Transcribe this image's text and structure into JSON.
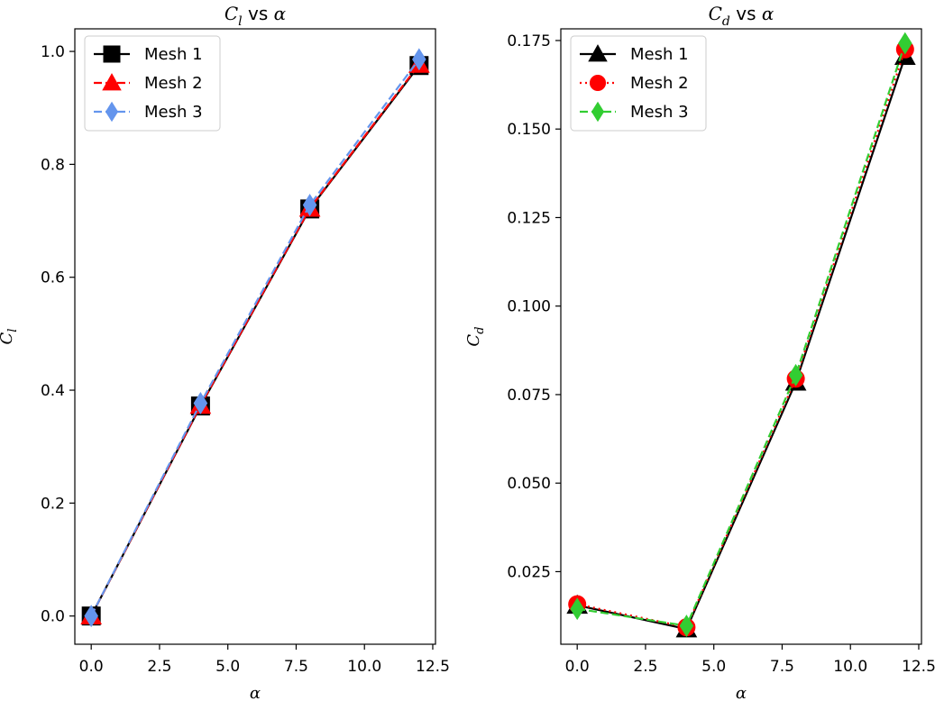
{
  "chart_data": [
    {
      "type": "line",
      "title": "C_l vs α",
      "title_parts": {
        "sym": "C",
        "sub": "l",
        "rest": " vs ",
        "greek": "α"
      },
      "xlabel": "α",
      "ylabel": {
        "sym": "C",
        "sub": "l"
      },
      "xlim": [
        -0.6,
        12.6
      ],
      "ylim": [
        -0.05,
        1.04
      ],
      "xticks": [
        0.0,
        2.5,
        5.0,
        7.5,
        10.0,
        12.5
      ],
      "xtick_labels": [
        "0.0",
        "2.5",
        "5.0",
        "7.5",
        "10.0",
        "12.5"
      ],
      "yticks": [
        0.0,
        0.2,
        0.4,
        0.6,
        0.8,
        1.0
      ],
      "ytick_labels": [
        "0.0",
        "0.2",
        "0.4",
        "0.6",
        "0.8",
        "1.0"
      ],
      "legend_position": "top-left",
      "grid": false,
      "series": [
        {
          "name": "Mesh 1",
          "color": "#000000",
          "linestyle": "solid",
          "marker": "square",
          "x": [
            0,
            4,
            8,
            12
          ],
          "values": [
            0.0,
            0.372,
            0.721,
            0.975
          ]
        },
        {
          "name": "Mesh 2",
          "color": "#ff0000",
          "linestyle": "dashed",
          "marker": "triangle",
          "x": [
            0,
            4,
            8,
            12
          ],
          "values": [
            0.0,
            0.373,
            0.722,
            0.977
          ]
        },
        {
          "name": "Mesh 3",
          "color": "#6495ed",
          "linestyle": "dashed",
          "marker": "diamond",
          "x": [
            0,
            4,
            8,
            12
          ],
          "values": [
            0.0,
            0.377,
            0.728,
            0.986
          ]
        }
      ]
    },
    {
      "type": "line",
      "title": "C_d vs α",
      "title_parts": {
        "sym": "C",
        "sub": "d",
        "rest": " vs ",
        "greek": "α"
      },
      "xlabel": "α",
      "ylabel": {
        "sym": "C",
        "sub": "d"
      },
      "xlim": [
        -0.6,
        12.6
      ],
      "ylim": [
        0.0045,
        0.1783
      ],
      "xticks": [
        0.0,
        2.5,
        5.0,
        7.5,
        10.0,
        12.5
      ],
      "xtick_labels": [
        "0.0",
        "2.5",
        "5.0",
        "7.5",
        "10.0",
        "12.5"
      ],
      "yticks": [
        0.025,
        0.05,
        0.075,
        0.1,
        0.125,
        0.15,
        0.175
      ],
      "ytick_labels": [
        "0.025",
        "0.050",
        "0.075",
        "0.100",
        "0.125",
        "0.150",
        "0.175"
      ],
      "legend_position": "top-left",
      "grid": false,
      "series": [
        {
          "name": "Mesh 1",
          "color": "#000000",
          "linestyle": "solid",
          "marker": "triangle",
          "x": [
            0,
            4,
            8,
            12
          ],
          "values": [
            0.0155,
            0.0088,
            0.0785,
            0.1705
          ]
        },
        {
          "name": "Mesh 2",
          "color": "#ff0000",
          "linestyle": "dotted",
          "marker": "circle",
          "x": [
            0,
            4,
            8,
            12
          ],
          "values": [
            0.0158,
            0.0093,
            0.0795,
            0.1725
          ]
        },
        {
          "name": "Mesh 3",
          "color": "#32cd32",
          "linestyle": "dashed",
          "marker": "diamond",
          "x": [
            0,
            4,
            8,
            12
          ],
          "values": [
            0.0145,
            0.0097,
            0.0805,
            0.1742
          ]
        }
      ]
    }
  ]
}
